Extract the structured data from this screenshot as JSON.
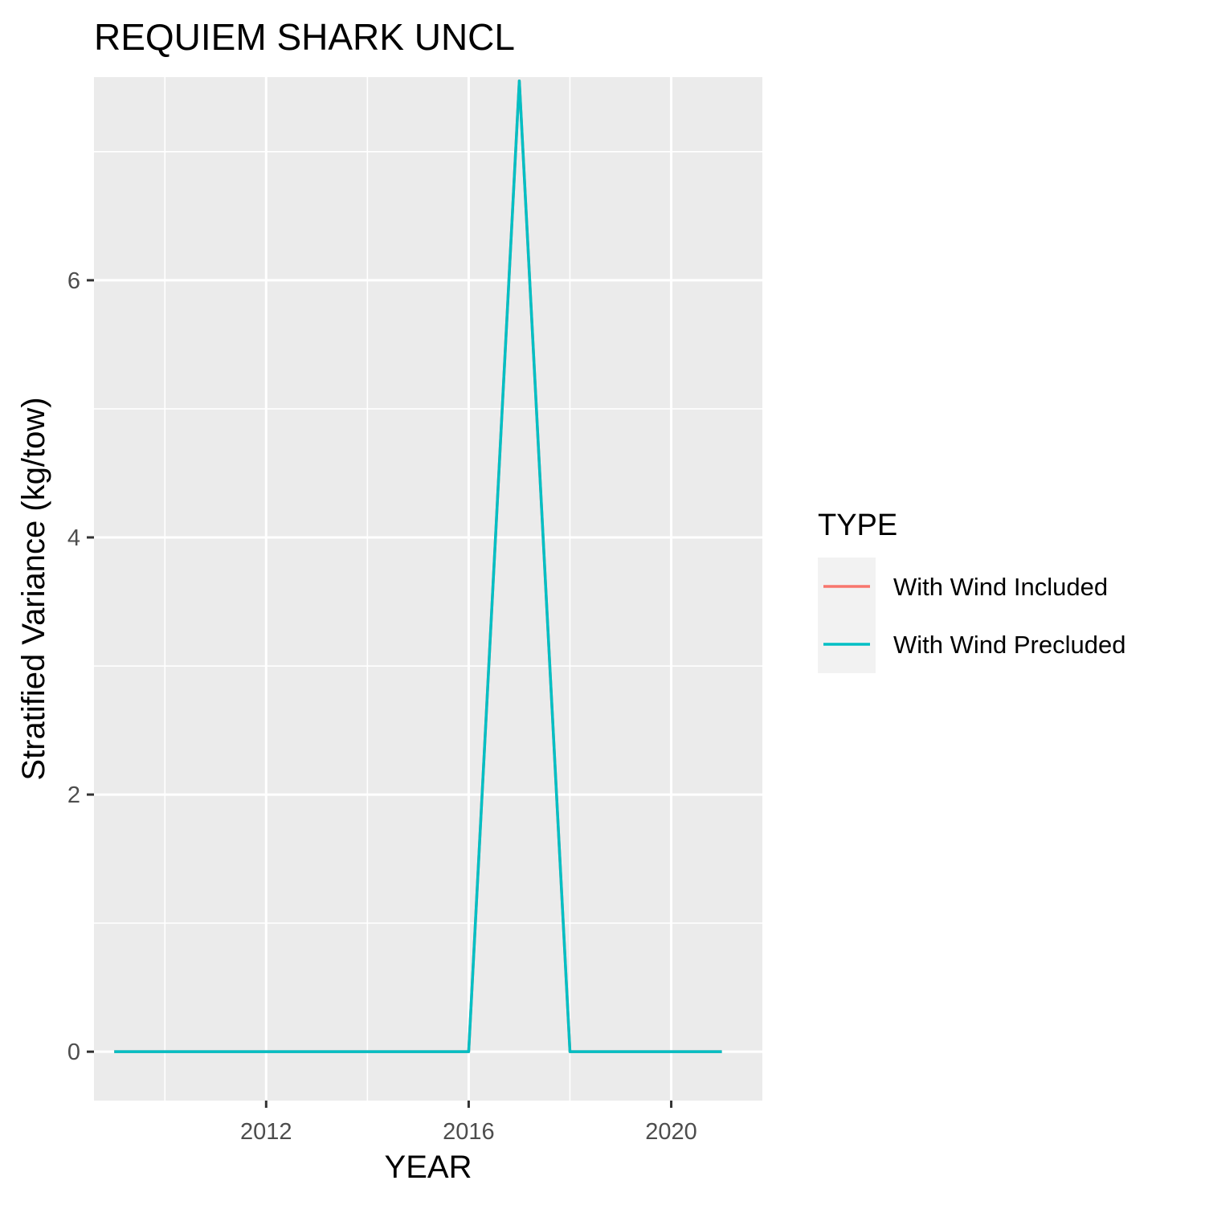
{
  "chart_data": {
    "type": "line",
    "title": "REQUIEM SHARK UNCL",
    "xlabel": "YEAR",
    "ylabel": "Stratified Variance (kg/tow)",
    "xlim": [
      2008.6,
      2021.8
    ],
    "ylim": [
      -0.38,
      7.58
    ],
    "x_major_ticks": [
      2012,
      2016,
      2020
    ],
    "x_minor_ticks": [
      2010,
      2014,
      2018
    ],
    "y_major_ticks": [
      0,
      2,
      4,
      6
    ],
    "y_minor_ticks": [
      1,
      3,
      5,
      7
    ],
    "grid": true,
    "legend": {
      "title": "TYPE",
      "placement": "right"
    },
    "x": [
      2009,
      2010,
      2011,
      2012,
      2013,
      2014,
      2015,
      2016,
      2017,
      2018,
      2019,
      2020,
      2021
    ],
    "series": [
      {
        "name": "With Wind Included",
        "color": "#F8766D",
        "values": [
          0,
          0,
          0,
          0,
          0,
          0,
          0,
          0,
          7.55,
          0,
          0,
          0,
          0
        ]
      },
      {
        "name": "With Wind Precluded",
        "color": "#00BFC4",
        "values": [
          0,
          0,
          0,
          0,
          0,
          0,
          0,
          0,
          7.55,
          0,
          0,
          0,
          0
        ]
      }
    ]
  }
}
